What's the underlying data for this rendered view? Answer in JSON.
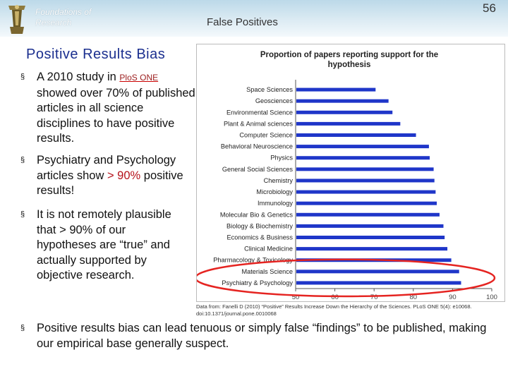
{
  "header": {
    "course_line1": "Foundations of",
    "course_line2": "Research",
    "title": "False Positives",
    "page_number": "56",
    "colors": {
      "band_top": "#bcd9e9",
      "band_bottom": "#f4f9fc"
    }
  },
  "slide": {
    "title": "Positive Results Bias",
    "bullet_glyph": "§",
    "bullets": [
      {
        "before": "A 2010 study in ",
        "link": "PloS ONE",
        "after": " showed over 70% of published articles in all science disciplines to have positive results."
      },
      {
        "before": "Psychiatry and Psychology articles show ",
        "highlight": "> 90%",
        "after": " positive results!"
      },
      {
        "text": "It is not remotely plausible that > 90% of our hypotheses are “true” and actually supported by objective research."
      },
      {
        "text": "Positive results bias can lead tenuous or simply false “findings” to be published, making our empirical base generally suspect."
      }
    ],
    "citation": "Data from: Fanelli D (2010) “Positive” Results Increase Down the Hierarchy of the Sciences. PLoS ONE 5(4): e10068. doi:10.1371/journal.pone.0010068"
  },
  "chart_data": {
    "type": "bar",
    "orientation": "horizontal",
    "title": "Proportion of papers reporting support for the hypothesis",
    "categories": [
      "Space Sciences",
      "Geosciences",
      "Environmental Science",
      "Plant & Animal sciences",
      "Computer Science",
      "Behavioral Neuroscience",
      "Physics",
      "General Social Sciences",
      "Chemistry",
      "Microbiology",
      "Immunology",
      "Molecular Bio & Genetics",
      "Biology & Biochemistry",
      "Economics & Business",
      "Clinical Medicine",
      "Pharmacology & Toxicology",
      "Materials Science",
      "Psychiatry & Psychology"
    ],
    "values": [
      70.2,
      73.5,
      74.5,
      76.5,
      80.5,
      83.8,
      84,
      85,
      85.2,
      85.5,
      85.8,
      86.5,
      87.5,
      87.8,
      88.5,
      89.5,
      91.5,
      92
    ],
    "xlim": [
      50,
      100
    ],
    "xticks": [
      50,
      60,
      70,
      80,
      90,
      100
    ],
    "bar_color": "#1f36c9",
    "highlight": {
      "categories": [
        "Materials Science",
        "Psychiatry & Psychology"
      ],
      "color": "#e52421"
    }
  }
}
